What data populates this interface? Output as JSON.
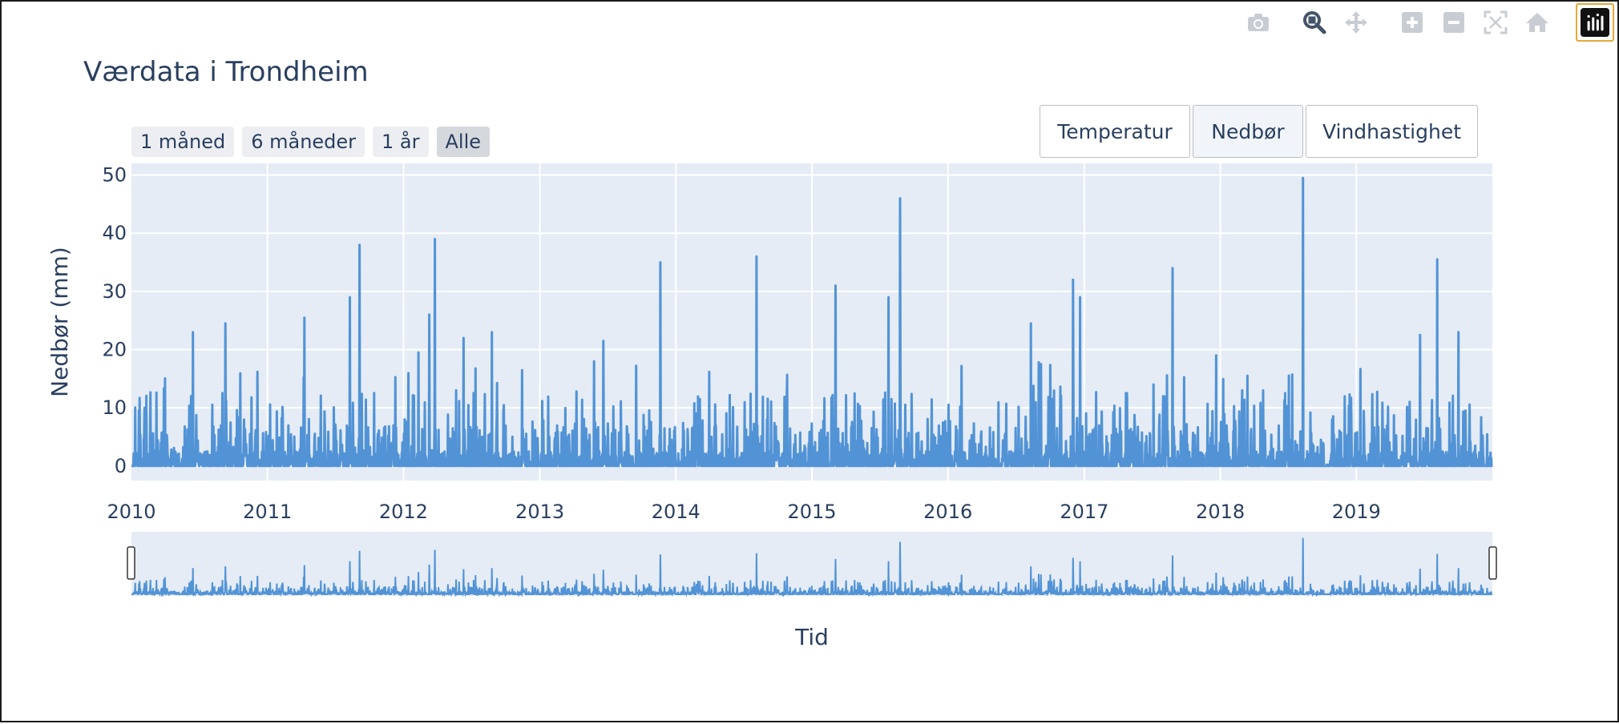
{
  "title": "Værdata i Trondheim",
  "modebar": {
    "icons": [
      "camera-icon",
      "zoom-icon",
      "pan-icon",
      "zoom-in-icon",
      "zoom-out-icon",
      "autoscale-icon",
      "reset-axes-icon",
      "plotly-logo-icon"
    ],
    "active": "zoom-icon"
  },
  "range_selector": {
    "buttons": [
      "1 måned",
      "6 måneder",
      "1 år",
      "Alle"
    ],
    "active": "Alle"
  },
  "update_menu": {
    "buttons": [
      "Temperatur",
      "Nedbør",
      "Vindhastighet"
    ],
    "active": "Nedbør"
  },
  "colors": {
    "line": "#5293d6",
    "plot_bg": "#e5ecf6",
    "grid": "#ffffff",
    "text": "#2a3f5f"
  },
  "chart_data": {
    "type": "line",
    "xlabel": "Tid",
    "ylabel": "Nedbør (mm)",
    "xlim": [
      "2010-01-01",
      "2020-01-01"
    ],
    "ylim": [
      -2.5,
      52
    ],
    "yticks": [
      0,
      10,
      20,
      30,
      40,
      50
    ],
    "xticks": [
      "2010",
      "2011",
      "2012",
      "2013",
      "2014",
      "2015",
      "2016",
      "2017",
      "2018",
      "2019"
    ],
    "grid": true,
    "rangeslider": true,
    "series": [
      {
        "values_unit": "daily precipitation (mm)",
        "peaks": [
          {
            "x": "2010-02-05",
            "y": 10
          },
          {
            "x": "2010-06-15",
            "y": 23
          },
          {
            "x": "2010-09-10",
            "y": 24.5
          },
          {
            "x": "2011-04-10",
            "y": 25.5
          },
          {
            "x": "2011-08-10",
            "y": 29
          },
          {
            "x": "2011-09-05",
            "y": 38
          },
          {
            "x": "2012-02-10",
            "y": 19.5
          },
          {
            "x": "2012-03-10",
            "y": 26
          },
          {
            "x": "2012-03-25",
            "y": 39
          },
          {
            "x": "2012-06-10",
            "y": 22
          },
          {
            "x": "2012-08-25",
            "y": 23
          },
          {
            "x": "2013-06-20",
            "y": 21.5
          },
          {
            "x": "2013-11-20",
            "y": 35
          },
          {
            "x": "2014-08-05",
            "y": 36
          },
          {
            "x": "2015-03-05",
            "y": 31
          },
          {
            "x": "2015-07-25",
            "y": 29
          },
          {
            "x": "2015-08-25",
            "y": 46
          },
          {
            "x": "2016-08-10",
            "y": 24.5
          },
          {
            "x": "2016-12-01",
            "y": 32
          },
          {
            "x": "2016-12-20",
            "y": 29
          },
          {
            "x": "2017-08-25",
            "y": 34
          },
          {
            "x": "2017-12-20",
            "y": 19
          },
          {
            "x": "2018-08-10",
            "y": 49.5
          },
          {
            "x": "2019-06-20",
            "y": 22.5
          },
          {
            "x": "2019-08-05",
            "y": 35.5
          },
          {
            "x": "2019-10-01",
            "y": 23
          }
        ]
      }
    ]
  }
}
